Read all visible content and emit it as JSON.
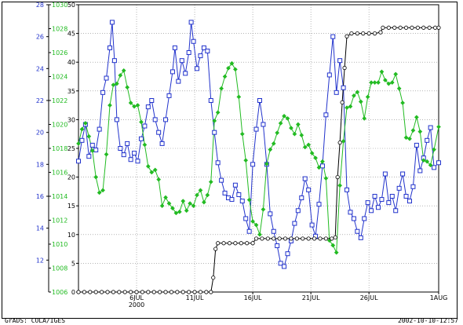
{
  "footer": {
    "left": "GrADS: COLA/IGES",
    "right": "2002-10-10-12:57"
  },
  "colors": {
    "blue": "#2233cc",
    "green": "#22bb22",
    "black": "#000000",
    "grid": "#888888"
  },
  "chart_data": {
    "type": "line",
    "title": "",
    "grid": true,
    "legend": "none",
    "x_range": [
      "2000-07-01",
      "2000-08-01"
    ],
    "x_ticks": [
      {
        "day": 6,
        "label": "6JUL",
        "sub": "2000"
      },
      {
        "day": 11,
        "label": "11JUL",
        "sub": ""
      },
      {
        "day": 16,
        "label": "16JUL",
        "sub": ""
      },
      {
        "day": 21,
        "label": "21JUL",
        "sub": ""
      },
      {
        "day": 26,
        "label": "26JUL",
        "sub": ""
      },
      {
        "day": 32,
        "label": "1AUG",
        "sub": ""
      }
    ],
    "axes": {
      "blue": {
        "range": [
          10,
          28
        ],
        "ticks": [
          12,
          14,
          16,
          18,
          20,
          22,
          24,
          26,
          28
        ]
      },
      "green": {
        "range": [
          1006,
          1030
        ],
        "ticks": [
          1006,
          1008,
          1010,
          1012,
          1014,
          1016,
          1018,
          1020,
          1022,
          1024,
          1026,
          1028,
          1030
        ]
      },
      "black": {
        "range": [
          0,
          50
        ],
        "ticks": [
          0,
          5,
          10,
          15,
          20,
          25,
          30,
          35,
          40,
          45,
          50
        ]
      }
    },
    "series": [
      {
        "axis": "blue",
        "marker": "square",
        "points": [
          [
            1.0,
            18.2
          ],
          [
            1.3,
            19.5
          ],
          [
            1.6,
            20.5
          ],
          [
            1.9,
            18.5
          ],
          [
            2.2,
            19.2
          ],
          [
            2.5,
            18.9
          ],
          [
            2.8,
            20.2
          ],
          [
            3.1,
            22.5
          ],
          [
            3.4,
            23.4
          ],
          [
            3.7,
            25.3
          ],
          [
            3.9,
            26.9
          ],
          [
            4.1,
            24.5
          ],
          [
            4.3,
            20.8
          ],
          [
            4.6,
            19.0
          ],
          [
            4.9,
            18.6
          ],
          [
            5.2,
            19.3
          ],
          [
            5.5,
            18.3
          ],
          [
            5.8,
            18.7
          ],
          [
            6.1,
            18.2
          ],
          [
            6.4,
            19.6
          ],
          [
            6.7,
            20.4
          ],
          [
            7.0,
            21.6
          ],
          [
            7.3,
            22.0
          ],
          [
            7.6,
            20.8
          ],
          [
            7.9,
            20.0
          ],
          [
            8.2,
            19.3
          ],
          [
            8.5,
            20.8
          ],
          [
            8.8,
            22.3
          ],
          [
            9.1,
            23.8
          ],
          [
            9.3,
            25.3
          ],
          [
            9.6,
            23.2
          ],
          [
            9.9,
            24.5
          ],
          [
            10.2,
            23.7
          ],
          [
            10.5,
            25.0
          ],
          [
            10.7,
            26.9
          ],
          [
            10.9,
            25.7
          ],
          [
            11.2,
            24.0
          ],
          [
            11.5,
            24.8
          ],
          [
            11.8,
            25.3
          ],
          [
            12.1,
            25.1
          ],
          [
            12.4,
            22.0
          ],
          [
            12.7,
            20.0
          ],
          [
            13.0,
            18.1
          ],
          [
            13.3,
            17.0
          ],
          [
            13.6,
            16.2
          ],
          [
            13.9,
            15.9
          ],
          [
            14.2,
            15.8
          ],
          [
            14.5,
            16.7
          ],
          [
            14.8,
            16.1
          ],
          [
            15.1,
            15.7
          ],
          [
            15.4,
            14.6
          ],
          [
            15.7,
            13.8
          ],
          [
            16.0,
            18.0
          ],
          [
            16.3,
            20.2
          ],
          [
            16.6,
            22.0
          ],
          [
            16.9,
            20.5
          ],
          [
            17.2,
            18.0
          ],
          [
            17.5,
            14.9
          ],
          [
            17.8,
            13.8
          ],
          [
            18.1,
            12.9
          ],
          [
            18.4,
            11.8
          ],
          [
            18.7,
            11.6
          ],
          [
            19.0,
            12.4
          ],
          [
            19.3,
            13.2
          ],
          [
            19.6,
            14.3
          ],
          [
            19.9,
            15.1
          ],
          [
            20.2,
            15.9
          ],
          [
            20.5,
            17.1
          ],
          [
            20.8,
            16.4
          ],
          [
            21.1,
            14.2
          ],
          [
            21.4,
            13.5
          ],
          [
            21.7,
            15.5
          ],
          [
            22.0,
            17.9
          ],
          [
            22.3,
            21.1
          ],
          [
            22.6,
            23.6
          ],
          [
            22.9,
            26.0
          ],
          [
            23.2,
            22.5
          ],
          [
            23.5,
            24.5
          ],
          [
            23.8,
            22.8
          ],
          [
            24.1,
            16.4
          ],
          [
            24.4,
            15.0
          ],
          [
            24.7,
            14.6
          ],
          [
            25.0,
            13.8
          ],
          [
            25.3,
            13.4
          ],
          [
            25.6,
            14.6
          ],
          [
            25.9,
            15.6
          ],
          [
            26.2,
            15.1
          ],
          [
            26.5,
            16.0
          ],
          [
            26.8,
            15.3
          ],
          [
            27.1,
            15.8
          ],
          [
            27.4,
            17.4
          ],
          [
            27.7,
            15.6
          ],
          [
            28.0,
            16.0
          ],
          [
            28.3,
            15.1
          ],
          [
            28.6,
            16.5
          ],
          [
            28.9,
            17.4
          ],
          [
            29.2,
            16.0
          ],
          [
            29.5,
            15.7
          ],
          [
            29.8,
            16.6
          ],
          [
            30.1,
            19.2
          ],
          [
            30.4,
            17.6
          ],
          [
            30.7,
            18.4
          ],
          [
            31.0,
            19.5
          ],
          [
            31.3,
            20.3
          ],
          [
            31.6,
            17.8
          ],
          [
            32.0,
            18.1
          ]
        ]
      },
      {
        "axis": "green",
        "marker": "diamond",
        "points": [
          [
            1.0,
            1018.4
          ],
          [
            1.3,
            1019.6
          ],
          [
            1.6,
            1020.1
          ],
          [
            1.9,
            1019.0
          ],
          [
            2.2,
            1017.8
          ],
          [
            2.5,
            1015.6
          ],
          [
            2.8,
            1014.3
          ],
          [
            3.1,
            1014.5
          ],
          [
            3.4,
            1017.5
          ],
          [
            3.7,
            1021.6
          ],
          [
            4.0,
            1023.3
          ],
          [
            4.3,
            1023.4
          ],
          [
            4.6,
            1024.1
          ],
          [
            4.9,
            1024.5
          ],
          [
            5.2,
            1023.1
          ],
          [
            5.5,
            1021.8
          ],
          [
            5.8,
            1021.5
          ],
          [
            6.1,
            1021.6
          ],
          [
            6.4,
            1020.2
          ],
          [
            6.7,
            1018.3
          ],
          [
            7.0,
            1016.5
          ],
          [
            7.3,
            1016.0
          ],
          [
            7.6,
            1016.2
          ],
          [
            7.9,
            1015.4
          ],
          [
            8.2,
            1013.2
          ],
          [
            8.5,
            1013.9
          ],
          [
            8.8,
            1013.4
          ],
          [
            9.1,
            1013.0
          ],
          [
            9.4,
            1012.6
          ],
          [
            9.7,
            1012.7
          ],
          [
            10.0,
            1013.6
          ],
          [
            10.3,
            1012.8
          ],
          [
            10.6,
            1013.4
          ],
          [
            10.9,
            1013.2
          ],
          [
            11.2,
            1014.1
          ],
          [
            11.5,
            1014.5
          ],
          [
            11.8,
            1013.5
          ],
          [
            12.1,
            1014.1
          ],
          [
            12.4,
            1015.2
          ],
          [
            12.7,
            1020.3
          ],
          [
            13.0,
            1021.0
          ],
          [
            13.3,
            1023.0
          ],
          [
            13.6,
            1024.0
          ],
          [
            13.9,
            1024.7
          ],
          [
            14.2,
            1025.1
          ],
          [
            14.5,
            1024.6
          ],
          [
            14.8,
            1022.3
          ],
          [
            15.1,
            1019.2
          ],
          [
            15.4,
            1017.0
          ],
          [
            15.7,
            1013.7
          ],
          [
            16.0,
            1011.9
          ],
          [
            16.3,
            1011.6
          ],
          [
            16.6,
            1010.8
          ],
          [
            16.9,
            1012.9
          ],
          [
            17.2,
            1016.7
          ],
          [
            17.5,
            1017.9
          ],
          [
            17.8,
            1018.4
          ],
          [
            18.1,
            1019.3
          ],
          [
            18.4,
            1020.1
          ],
          [
            18.7,
            1020.7
          ],
          [
            19.0,
            1020.5
          ],
          [
            19.3,
            1019.7
          ],
          [
            19.6,
            1019.2
          ],
          [
            19.9,
            1020.0
          ],
          [
            20.2,
            1019.1
          ],
          [
            20.5,
            1018.1
          ],
          [
            20.8,
            1018.3
          ],
          [
            21.1,
            1017.6
          ],
          [
            21.4,
            1017.2
          ],
          [
            21.7,
            1016.4
          ],
          [
            22.0,
            1016.9
          ],
          [
            22.3,
            1015.5
          ],
          [
            22.6,
            1010.3
          ],
          [
            22.9,
            1009.9
          ],
          [
            23.2,
            1009.3
          ],
          [
            23.5,
            1014.9
          ],
          [
            23.8,
            1018.6
          ],
          [
            24.1,
            1021.4
          ],
          [
            24.4,
            1021.5
          ],
          [
            24.7,
            1022.4
          ],
          [
            25.0,
            1022.7
          ],
          [
            25.3,
            1021.9
          ],
          [
            25.6,
            1020.5
          ],
          [
            25.9,
            1022.3
          ],
          [
            26.2,
            1023.5
          ],
          [
            26.5,
            1023.5
          ],
          [
            26.8,
            1023.5
          ],
          [
            27.1,
            1024.4
          ],
          [
            27.4,
            1023.7
          ],
          [
            27.7,
            1023.4
          ],
          [
            28.0,
            1023.5
          ],
          [
            28.3,
            1024.2
          ],
          [
            28.6,
            1023.0
          ],
          [
            28.9,
            1021.8
          ],
          [
            29.2,
            1018.9
          ],
          [
            29.5,
            1018.8
          ],
          [
            29.8,
            1019.5
          ],
          [
            30.1,
            1020.6
          ],
          [
            30.4,
            1019.4
          ],
          [
            30.7,
            1017.0
          ],
          [
            31.0,
            1016.9
          ],
          [
            31.3,
            1016.6
          ],
          [
            31.6,
            1017.9
          ],
          [
            32.0,
            1019.8
          ]
        ]
      },
      {
        "axis": "black",
        "marker": "circle",
        "points": [
          [
            1.0,
            0
          ],
          [
            1.5,
            0
          ],
          [
            2.0,
            0
          ],
          [
            2.5,
            0
          ],
          [
            3.0,
            0
          ],
          [
            3.5,
            0
          ],
          [
            4.0,
            0
          ],
          [
            4.5,
            0
          ],
          [
            5.0,
            0
          ],
          [
            5.5,
            0
          ],
          [
            6.0,
            0
          ],
          [
            6.5,
            0
          ],
          [
            7.0,
            0
          ],
          [
            7.5,
            0
          ],
          [
            8.0,
            0
          ],
          [
            8.5,
            0
          ],
          [
            9.0,
            0
          ],
          [
            9.5,
            0
          ],
          [
            10.0,
            0
          ],
          [
            10.5,
            0
          ],
          [
            11.0,
            0
          ],
          [
            11.5,
            0
          ],
          [
            12.0,
            0
          ],
          [
            12.4,
            0
          ],
          [
            12.6,
            2.5
          ],
          [
            12.8,
            7.5
          ],
          [
            13.0,
            8.5
          ],
          [
            13.5,
            8.5
          ],
          [
            14.0,
            8.5
          ],
          [
            14.5,
            8.5
          ],
          [
            15.0,
            8.5
          ],
          [
            15.5,
            8.5
          ],
          [
            16.0,
            8.5
          ],
          [
            16.3,
            9.3
          ],
          [
            16.8,
            9.3
          ],
          [
            17.3,
            9.3
          ],
          [
            17.8,
            9.3
          ],
          [
            18.3,
            9.3
          ],
          [
            18.8,
            9.3
          ],
          [
            19.3,
            9.3
          ],
          [
            19.8,
            9.3
          ],
          [
            20.3,
            9.3
          ],
          [
            20.8,
            9.3
          ],
          [
            21.3,
            9.3
          ],
          [
            21.8,
            9.3
          ],
          [
            22.3,
            9.3
          ],
          [
            22.8,
            9.3
          ],
          [
            23.1,
            9.5
          ],
          [
            23.3,
            20.0
          ],
          [
            23.5,
            26.0
          ],
          [
            23.7,
            33.0
          ],
          [
            23.9,
            39.0
          ],
          [
            24.1,
            44.5
          ],
          [
            24.5,
            45.0
          ],
          [
            25.0,
            45.0
          ],
          [
            25.5,
            45.0
          ],
          [
            26.0,
            45.0
          ],
          [
            26.5,
            45.0
          ],
          [
            27.0,
            45.2
          ],
          [
            27.2,
            46.0
          ],
          [
            27.7,
            46.0
          ],
          [
            28.2,
            46.0
          ],
          [
            28.7,
            46.0
          ],
          [
            29.2,
            46.0
          ],
          [
            29.7,
            46.0
          ],
          [
            30.2,
            46.0
          ],
          [
            30.7,
            46.0
          ],
          [
            31.2,
            46.0
          ],
          [
            31.7,
            46.0
          ],
          [
            32.0,
            46.0
          ]
        ]
      }
    ]
  }
}
